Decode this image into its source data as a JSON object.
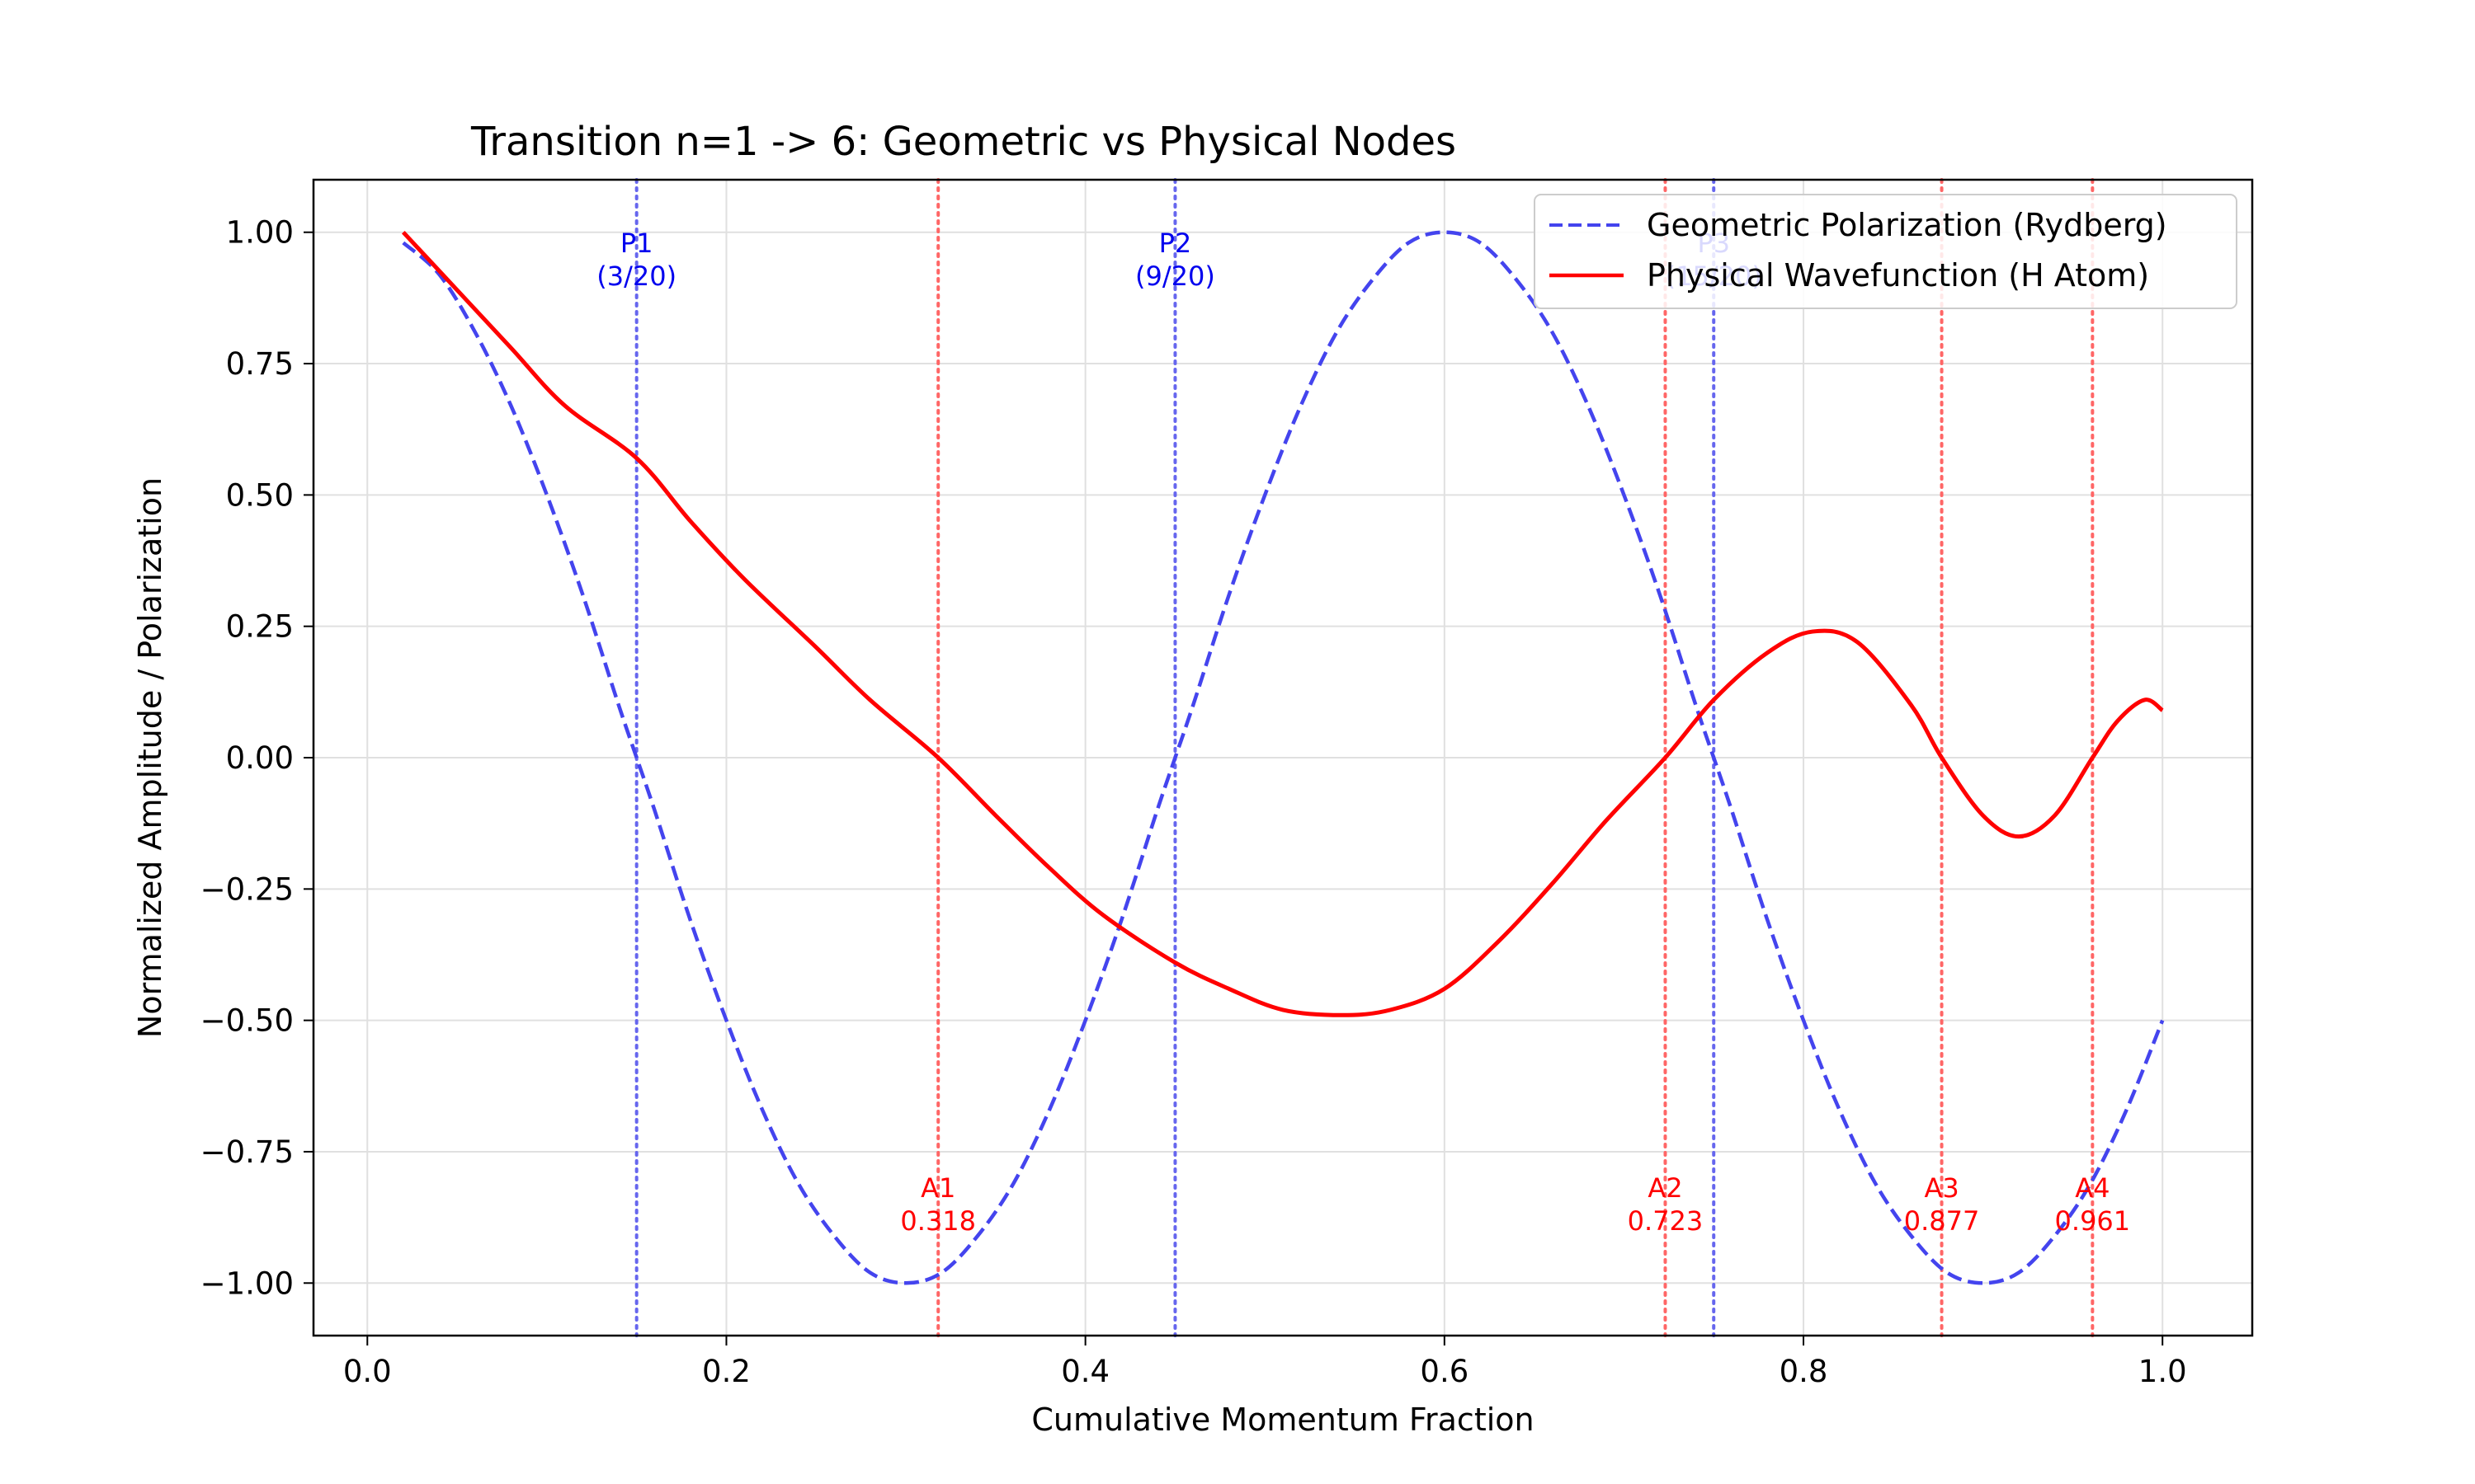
{
  "chart_data": {
    "type": "line",
    "title": "Transition n=1 -> 6: Geometric vs Physical Nodes",
    "xlabel": "Cumulative Momentum Fraction",
    "ylabel": "Normalized Amplitude / Polarization",
    "xlim": [
      -0.03,
      1.05
    ],
    "ylim": [
      -1.1,
      1.1
    ],
    "xticks": [
      0.0,
      0.2,
      0.4,
      0.6,
      0.8,
      1.0
    ],
    "xtick_labels": [
      "0.0",
      "0.2",
      "0.4",
      "0.6",
      "0.8",
      "1.0"
    ],
    "yticks": [
      1.0,
      0.75,
      0.5,
      0.25,
      0.0,
      -0.25,
      -0.5,
      -0.75,
      -1.0
    ],
    "ytick_labels": [
      "1.00",
      "0.75",
      "0.50",
      "0.25",
      "0.00",
      "−0.25",
      "−0.50",
      "−0.75",
      "−1.00"
    ],
    "grid": true,
    "legend_position": "top-right",
    "colors": {
      "geometric": "#4444ee",
      "physical": "#ff0000",
      "p_node": "#6666ee",
      "a_node": "#ff6666",
      "p_label": "#0000ee",
      "a_label": "#ff0000"
    },
    "series": [
      {
        "name": "Geometric Polarization (Rydberg)",
        "style": "dashed",
        "x": [
          0.02,
          0.04,
          0.06,
          0.08,
          0.1,
          0.12,
          0.14,
          0.15,
          0.16,
          0.18,
          0.2,
          0.22,
          0.24,
          0.26,
          0.28,
          0.3,
          0.32,
          0.34,
          0.36,
          0.38,
          0.4,
          0.42,
          0.44,
          0.45,
          0.46,
          0.48,
          0.5,
          0.52,
          0.54,
          0.56,
          0.58,
          0.6,
          0.62,
          0.64,
          0.66,
          0.68,
          0.7,
          0.72,
          0.74,
          0.75,
          0.76,
          0.78,
          0.8,
          0.82,
          0.84,
          0.86,
          0.88,
          0.9,
          0.92,
          0.94,
          0.96,
          0.98,
          1.0
        ],
        "values": [
          0.98,
          0.92,
          0.81,
          0.67,
          0.5,
          0.31,
          0.1,
          0.0,
          -0.1,
          -0.31,
          -0.5,
          -0.67,
          -0.81,
          -0.91,
          -0.98,
          -1.0,
          -0.98,
          -0.91,
          -0.81,
          -0.67,
          -0.5,
          -0.31,
          -0.1,
          0.0,
          0.1,
          0.31,
          0.5,
          0.67,
          0.81,
          0.91,
          0.98,
          1.0,
          0.98,
          0.91,
          0.81,
          0.67,
          0.5,
          0.31,
          0.1,
          0.0,
          -0.1,
          -0.31,
          -0.5,
          -0.67,
          -0.81,
          -0.91,
          -0.98,
          -1.0,
          -0.98,
          -0.91,
          -0.81,
          -0.67,
          -0.5
        ]
      },
      {
        "name": "Physical Wavefunction (H Atom)",
        "style": "solid",
        "x": [
          0.02,
          0.05,
          0.08,
          0.11,
          0.15,
          0.18,
          0.21,
          0.25,
          0.28,
          0.318,
          0.35,
          0.38,
          0.41,
          0.45,
          0.48,
          0.51,
          0.543,
          0.57,
          0.6,
          0.63,
          0.66,
          0.69,
          0.723,
          0.75,
          0.78,
          0.805,
          0.83,
          0.86,
          0.877,
          0.9,
          0.92,
          0.94,
          0.961,
          0.975,
          0.99,
          1.0
        ],
        "values": [
          1.0,
          0.89,
          0.78,
          0.67,
          0.57,
          0.45,
          0.34,
          0.21,
          0.11,
          0.0,
          -0.11,
          -0.21,
          -0.3,
          -0.39,
          -0.44,
          -0.48,
          -0.49,
          -0.48,
          -0.44,
          -0.35,
          -0.24,
          -0.12,
          0.0,
          0.11,
          0.2,
          0.24,
          0.22,
          0.1,
          0.0,
          -0.11,
          -0.15,
          -0.11,
          0.0,
          0.07,
          0.11,
          0.09
        ]
      }
    ],
    "node_lines": [
      {
        "kind": "p",
        "x": 0.15,
        "label": "P1",
        "sub": "(3/20)"
      },
      {
        "kind": "p",
        "x": 0.45,
        "label": "P2",
        "sub": "(9/20)"
      },
      {
        "kind": "p",
        "x": 0.75,
        "label": "P3",
        "sub": "(15/20)"
      },
      {
        "kind": "a",
        "x": 0.318,
        "label": "A1",
        "sub": "0.318"
      },
      {
        "kind": "a",
        "x": 0.723,
        "label": "A2",
        "sub": "0.723"
      },
      {
        "kind": "a",
        "x": 0.877,
        "label": "A3",
        "sub": "0.877"
      },
      {
        "kind": "a",
        "x": 0.961,
        "label": "A4",
        "sub": "0.961"
      }
    ]
  }
}
